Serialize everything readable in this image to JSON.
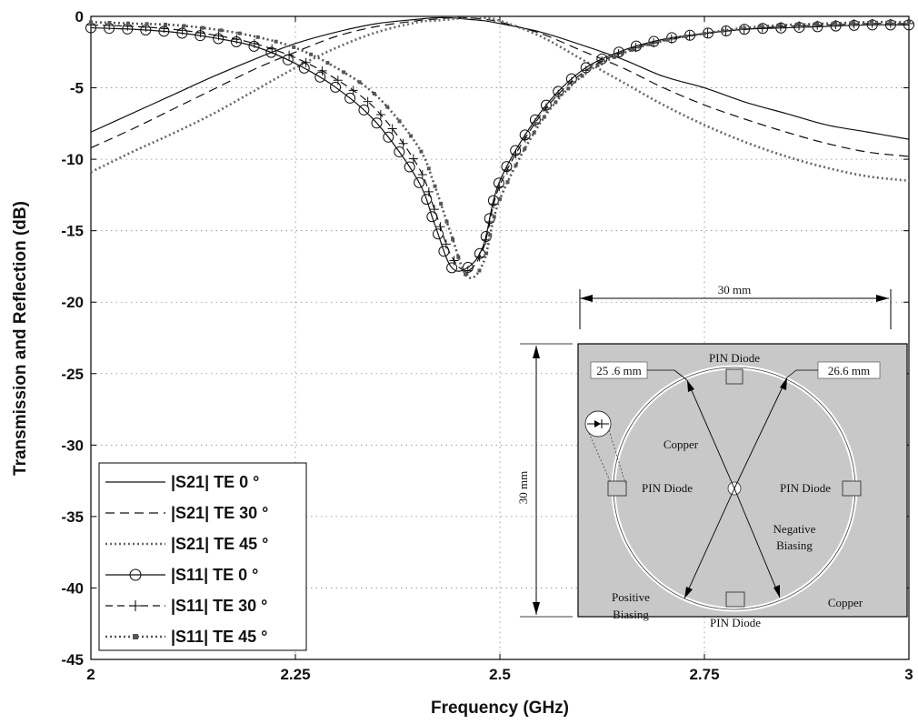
{
  "chart_data": {
    "type": "line",
    "xlabel": "Frequency (GHz)",
    "ylabel": "Transmission and Reflection (dB)",
    "xlim": [
      2,
      3
    ],
    "ylim": [
      -45,
      0
    ],
    "xticks": [
      "2",
      "2.25",
      "2.5",
      "2.75",
      "3"
    ],
    "yticks": [
      "0",
      "-5",
      "-10",
      "-15",
      "-20",
      "-25",
      "-30",
      "-35",
      "-40",
      "-45"
    ],
    "grid": true,
    "legend_position": "bottom-left",
    "x": [
      2.0,
      2.05,
      2.1,
      2.15,
      2.2,
      2.25,
      2.3,
      2.35,
      2.4,
      2.42,
      2.44,
      2.46,
      2.48,
      2.5,
      2.55,
      2.6,
      2.65,
      2.7,
      2.75,
      2.8,
      2.85,
      2.9,
      2.95,
      3.0
    ],
    "series": [
      {
        "name": "|S21| TE 0 °",
        "style": "solid",
        "values": [
          -8.1,
          -6.8,
          -5.5,
          -4.2,
          -3.0,
          -1.9,
          -1.1,
          -0.5,
          -0.2,
          -0.1,
          -0.1,
          -0.2,
          -0.3,
          -0.5,
          -1.1,
          -2.0,
          -3.0,
          -4.2,
          -5.0,
          -6.0,
          -6.8,
          -7.6,
          -8.1,
          -8.6
        ]
      },
      {
        "name": "|S21| TE 30 °",
        "style": "dashed",
        "values": [
          -9.2,
          -7.9,
          -6.5,
          -5.1,
          -3.7,
          -2.5,
          -1.4,
          -0.7,
          -0.3,
          -0.2,
          -0.1,
          -0.1,
          -0.2,
          -0.4,
          -1.2,
          -2.4,
          -3.6,
          -5.0,
          -6.2,
          -7.2,
          -8.1,
          -8.9,
          -9.5,
          -9.8
        ]
      },
      {
        "name": "|S21| TE 45 °",
        "style": "dotted",
        "values": [
          -10.9,
          -9.5,
          -8.2,
          -6.8,
          -5.2,
          -3.6,
          -2.2,
          -1.1,
          -0.4,
          -0.3,
          -0.2,
          -0.1,
          -0.1,
          -0.3,
          -1.4,
          -3.0,
          -4.6,
          -6.2,
          -7.6,
          -8.8,
          -9.8,
          -10.6,
          -11.2,
          -11.5
        ]
      },
      {
        "name": "|S11| TE 0 °",
        "style": "solid-circle",
        "values": [
          -0.8,
          -0.9,
          -1.1,
          -1.5,
          -2.1,
          -3.3,
          -5.0,
          -7.5,
          -11.5,
          -14.5,
          -17.5,
          -17.6,
          -16.0,
          -11.5,
          -6.7,
          -3.8,
          -2.4,
          -1.6,
          -1.2,
          -0.9,
          -0.8,
          -0.7,
          -0.6,
          -0.6
        ]
      },
      {
        "name": "|S11| TE 30 °",
        "style": "dashed-plus",
        "values": [
          -0.6,
          -0.7,
          -0.9,
          -1.3,
          -1.9,
          -2.9,
          -4.4,
          -6.6,
          -10.5,
          -13.5,
          -16.7,
          -17.8,
          -16.2,
          -11.8,
          -6.9,
          -4.0,
          -2.5,
          -1.7,
          -1.2,
          -0.9,
          -0.7,
          -0.6,
          -0.5,
          -0.5
        ]
      },
      {
        "name": "|S11| TE 45 °",
        "style": "dotted-square",
        "values": [
          -0.4,
          -0.5,
          -0.6,
          -0.9,
          -1.4,
          -2.2,
          -3.6,
          -5.6,
          -9.1,
          -11.8,
          -15.2,
          -18.2,
          -17.2,
          -12.8,
          -7.4,
          -4.2,
          -2.6,
          -1.7,
          -1.2,
          -0.8,
          -0.6,
          -0.5,
          -0.4,
          -0.4
        ]
      }
    ],
    "inset": {
      "width_label": "30 mm",
      "height_label": "30 mm",
      "labels": {
        "pin_top": "PIN Diode",
        "pin_left": "PIN Diode",
        "pin_right": "PIN Diode",
        "pin_bottom": "PIN Diode",
        "radius_left": "25 .6 mm",
        "radius_right": "26.6 mm",
        "copper_inner": "Copper",
        "copper_outer": "Copper",
        "negative": "Negative",
        "biasing_neg": "Biasing",
        "positive": "Positive",
        "biasing_pos": "Biasing"
      },
      "fill_color": "#c8c8c8"
    }
  }
}
